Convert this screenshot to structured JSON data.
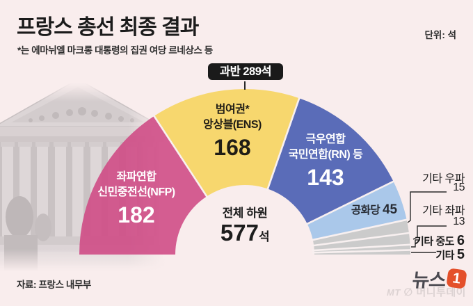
{
  "header": {
    "title": "프랑스 총선 최종 결과",
    "subtitle": "*는 에마뉘엘 마크롱 대통령의 집권 여당 르네상스 등",
    "unit": "단위: 석"
  },
  "majority_badge": {
    "label": "과반 289석"
  },
  "chart_data": {
    "type": "pie",
    "variant": "half-donut-hemicycle",
    "title": "프랑스 총선 최종 결과",
    "unit": "석",
    "total": {
      "label": "전체 하원",
      "value": 577,
      "unit": "석"
    },
    "majority": {
      "label": "과반",
      "value": 289
    },
    "background_color": "#F9EDED",
    "series": [
      {
        "name": "좌파연합 신민중전선(NFP)",
        "label_lines": [
          "좌파연합",
          "신민중전선(NFP)"
        ],
        "value": 182,
        "color": "#CF4D86",
        "fill_opacity": 0.9,
        "text_color": "#FFFFFF"
      },
      {
        "name": "범여권* 앙상블(ENS)",
        "label_lines": [
          "범여권*",
          "앙상블(ENS)"
        ],
        "value": 168,
        "color": "#F7D667",
        "fill_opacity": 0.95,
        "text_color": "#201D16"
      },
      {
        "name": "극우연합 국민연합(RN) 등",
        "label_lines": [
          "극우연합",
          "국민연합(RN) 등"
        ],
        "value": 143,
        "color": "#5A6CB8",
        "fill_opacity": 1,
        "text_color": "#FFFFFF"
      },
      {
        "name": "공화당",
        "value": 45,
        "color": "#AAC8EA",
        "fill_opacity": 1,
        "text_color": "#272B33"
      },
      {
        "name": "기타 우파",
        "value": 15,
        "color": "#CBCBCB",
        "fill_opacity": 1
      },
      {
        "name": "기타 좌파",
        "value": 13,
        "color": "#CBCBCB",
        "fill_opacity": 1
      },
      {
        "name": "기타 중도",
        "value": 6,
        "color": "#CBCBCB",
        "fill_opacity": 1
      },
      {
        "name": "기타",
        "value": 5,
        "color": "#CBCBCB",
        "fill_opacity": 1
      }
    ],
    "geometry": {
      "start_angle_deg": 180,
      "end_angle_deg": 0,
      "outer_radius": 238,
      "inner_radius": 100,
      "center": [
        352,
        366
      ]
    },
    "separator_color": "#F8F0F0"
  },
  "right_legend": [
    {
      "label": "기타 우파",
      "value": "15"
    },
    {
      "label": "기타 좌파",
      "value": "13"
    },
    {
      "label": "기타 중도",
      "value": "6"
    },
    {
      "label": "기타",
      "value": "5"
    }
  ],
  "footer": {
    "source": "자료: 프랑스 내무부",
    "logo_text": "뉴스",
    "logo_badge": "1",
    "logo_badge_color": "#E4502B",
    "watermark_mt": "MT",
    "watermark_symbol": "∅",
    "watermark_name": "머니투데이"
  }
}
